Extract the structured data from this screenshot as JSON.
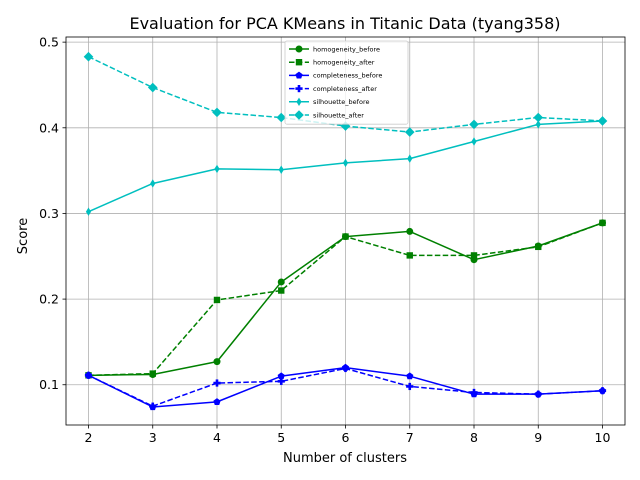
{
  "chart_data": {
    "type": "line",
    "title": "Evaluation for PCA KMeans in Titanic Data (tyang358)",
    "xlabel": "Number of clusters",
    "ylabel": "Score",
    "x": [
      2,
      3,
      4,
      5,
      6,
      7,
      8,
      9,
      10
    ],
    "xlim": [
      1.65,
      10.35
    ],
    "ylim": [
      0.053,
      0.506
    ],
    "xticks": [
      "2",
      "3",
      "4",
      "5",
      "6",
      "7",
      "8",
      "9",
      "10"
    ],
    "yticks": [
      0.1,
      0.2,
      0.3,
      0.4,
      0.5
    ],
    "ytick_labels": [
      "0.1",
      "0.2",
      "0.3",
      "0.4",
      "0.5"
    ],
    "grid": true,
    "legend_position": "upper-center",
    "series": [
      {
        "name": "homogeneity_before",
        "color": "#008000",
        "linestyle": "solid",
        "marker": "circle",
        "values": [
          0.111,
          0.112,
          0.127,
          0.22,
          0.273,
          0.279,
          0.246,
          0.262,
          0.289
        ]
      },
      {
        "name": "homogeneity_after",
        "color": "#008000",
        "linestyle": "dashed",
        "marker": "square",
        "values": [
          0.111,
          0.113,
          0.199,
          0.21,
          0.273,
          0.251,
          0.251,
          0.261,
          0.289
        ]
      },
      {
        "name": "completeness_before",
        "color": "#0000ff",
        "linestyle": "solid",
        "marker": "pentagon",
        "values": [
          0.111,
          0.074,
          0.08,
          0.11,
          0.12,
          0.11,
          0.089,
          0.089,
          0.093
        ]
      },
      {
        "name": "completeness_after",
        "color": "#0000ff",
        "linestyle": "dashed",
        "marker": "plus",
        "values": [
          0.111,
          0.075,
          0.102,
          0.104,
          0.119,
          0.098,
          0.091,
          0.089,
          0.093
        ]
      },
      {
        "name": "silhouette_before",
        "color": "#00bfbf",
        "linestyle": "solid",
        "marker": "thin_diamond",
        "values": [
          0.302,
          0.335,
          0.352,
          0.351,
          0.359,
          0.364,
          0.384,
          0.404,
          0.408
        ]
      },
      {
        "name": "silhouette_after",
        "color": "#00bfbf",
        "linestyle": "dashed",
        "marker": "diamond",
        "values": [
          0.483,
          0.447,
          0.418,
          0.412,
          0.402,
          0.395,
          0.404,
          0.412,
          0.408
        ]
      }
    ]
  }
}
